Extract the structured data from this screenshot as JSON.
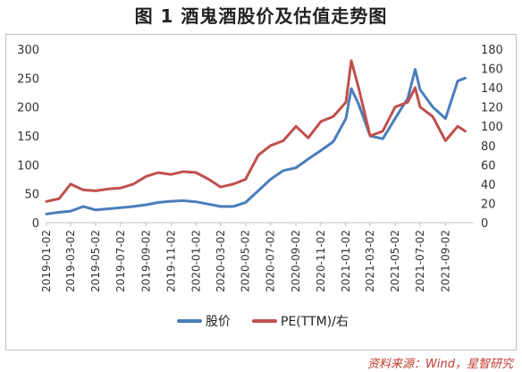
{
  "title": "图 1 酒鬼酒股价及估值走势图",
  "source": "资料来源：Wind，星智研究",
  "chart_data": {
    "type": "line",
    "xlabels": [
      "2019-01-02",
      "2019-03-02",
      "2019-05-02",
      "2019-07-02",
      "2019-09-02",
      "2019-11-02",
      "2020-01-02",
      "2020-03-02",
      "2020-05-02",
      "2020-07-02",
      "2020-09-02",
      "2020-11-02",
      "2021-01-02",
      "2021-03-02",
      "2021-05-02",
      "2021-07-02",
      "2021-09-02"
    ],
    "y_left": {
      "ticks": [
        "0",
        "50",
        "100",
        "150",
        "200",
        "250",
        "300"
      ],
      "range": [
        0,
        300
      ]
    },
    "y_right": {
      "ticks": [
        "0",
        "20",
        "40",
        "60",
        "80",
        "100",
        "120",
        "140",
        "160",
        "180"
      ],
      "range": [
        0,
        180
      ]
    },
    "series": [
      {
        "name": "股价",
        "axis": "left",
        "color": "#4a7ebb",
        "x": [
          "2019-01-02",
          "2019-02-02",
          "2019-03-02",
          "2019-04-02",
          "2019-05-02",
          "2019-06-02",
          "2019-07-02",
          "2019-08-02",
          "2019-09-02",
          "2019-10-02",
          "2019-11-02",
          "2019-12-02",
          "2020-01-02",
          "2020-02-02",
          "2020-03-02",
          "2020-04-02",
          "2020-05-02",
          "2020-06-02",
          "2020-07-02",
          "2020-08-02",
          "2020-09-02",
          "2020-10-02",
          "2020-11-02",
          "2020-12-02",
          "2021-01-02",
          "2021-01-15",
          "2021-02-02",
          "2021-03-02",
          "2021-04-02",
          "2021-05-02",
          "2021-06-02",
          "2021-06-20",
          "2021-07-02",
          "2021-08-02",
          "2021-09-02",
          "2021-10-02",
          "2021-10-20"
        ],
        "values": [
          15,
          18,
          20,
          28,
          22,
          24,
          26,
          28,
          31,
          35,
          37,
          38,
          36,
          32,
          28,
          28,
          35,
          55,
          75,
          90,
          95,
          110,
          125,
          140,
          180,
          232,
          205,
          150,
          145,
          180,
          215,
          265,
          230,
          200,
          180,
          245,
          250
        ]
      },
      {
        "name": "PE(TTM)/右",
        "axis": "right",
        "color": "#c0504d",
        "x": [
          "2019-01-02",
          "2019-02-02",
          "2019-03-02",
          "2019-04-02",
          "2019-05-02",
          "2019-06-02",
          "2019-07-02",
          "2019-08-02",
          "2019-09-02",
          "2019-10-02",
          "2019-11-02",
          "2019-12-02",
          "2020-01-02",
          "2020-02-02",
          "2020-03-02",
          "2020-04-02",
          "2020-05-02",
          "2020-06-02",
          "2020-07-02",
          "2020-08-02",
          "2020-09-02",
          "2020-10-02",
          "2020-11-02",
          "2020-12-02",
          "2021-01-02",
          "2021-01-15",
          "2021-02-02",
          "2021-03-02",
          "2021-04-02",
          "2021-05-02",
          "2021-06-02",
          "2021-06-20",
          "2021-07-02",
          "2021-08-02",
          "2021-09-02",
          "2021-10-02",
          "2021-10-20"
        ],
        "values": [
          22,
          25,
          40,
          34,
          33,
          35,
          36,
          40,
          48,
          52,
          50,
          53,
          52,
          45,
          37,
          40,
          45,
          70,
          80,
          85,
          100,
          88,
          105,
          110,
          125,
          168,
          140,
          90,
          95,
          120,
          125,
          140,
          120,
          110,
          85,
          100,
          95
        ]
      }
    ],
    "legend": "bottom-center",
    "grid": false
  }
}
